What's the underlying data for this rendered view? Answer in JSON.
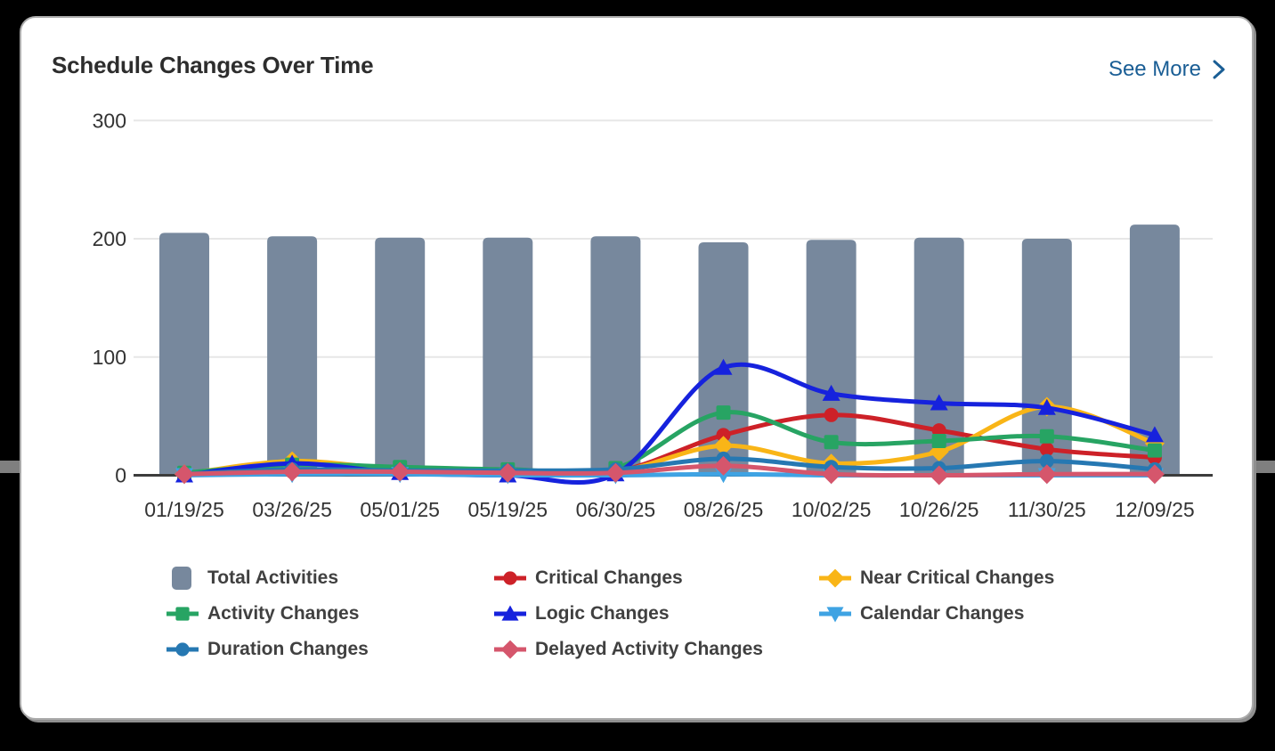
{
  "header": {
    "title": "Schedule Changes Over Time",
    "see_more_label": "See More",
    "accent_color": "#1a5e95"
  },
  "chart_data": {
    "type": "bar+line combo",
    "title": "Schedule Changes Over Time",
    "categories": [
      "01/19/25",
      "03/26/25",
      "05/01/25",
      "05/19/25",
      "06/30/25",
      "08/26/25",
      "10/02/25",
      "10/26/25",
      "11/30/25",
      "12/09/25"
    ],
    "bar_series": {
      "name": "Total Activities",
      "color": "#77889d",
      "values": [
        205,
        202,
        201,
        201,
        202,
        197,
        199,
        201,
        200,
        212
      ]
    },
    "line_series": [
      {
        "name": "Critical Changes",
        "color": "#cd2128",
        "marker": "circle",
        "values": [
          2,
          3,
          6,
          3,
          3,
          34,
          51,
          38,
          22,
          15
        ]
      },
      {
        "name": "Near Critical Changes",
        "color": "#f9b517",
        "marker": "diamond",
        "values": [
          1,
          12,
          5,
          3,
          3,
          25,
          10,
          20,
          58,
          27
        ]
      },
      {
        "name": "Activity Changes",
        "color": "#27a463",
        "marker": "square",
        "values": [
          2,
          9,
          7,
          5,
          6,
          53,
          28,
          29,
          33,
          21
        ]
      },
      {
        "name": "Logic Changes",
        "color": "#1622dd",
        "marker": "triangle-up",
        "values": [
          0,
          10,
          2,
          0,
          1,
          91,
          69,
          61,
          57,
          34
        ]
      },
      {
        "name": "Calendar Changes",
        "color": "#3fa3e3",
        "marker": "triangle-down",
        "values": [
          0,
          1,
          1,
          0,
          0,
          1,
          0,
          0,
          0,
          0
        ]
      },
      {
        "name": "Duration Changes",
        "color": "#2678b2",
        "marker": "circle",
        "values": [
          1,
          5,
          4,
          4,
          5,
          14,
          7,
          6,
          12,
          5
        ]
      },
      {
        "name": "Delayed Activity Changes",
        "color": "#d5566c",
        "marker": "diamond",
        "values": [
          1,
          3,
          3,
          2,
          2,
          8,
          1,
          0,
          1,
          1
        ]
      }
    ],
    "ylim": [
      0,
      300
    ],
    "yticks": [
      0,
      100,
      200,
      300
    ],
    "grid": "horizontal gridlines at 100/200/300",
    "legend_position": "bottom",
    "colors": {
      "gridline": "#e7e7e7",
      "zero_axis": "#3c3c3c",
      "tick_label": "#333333"
    }
  }
}
